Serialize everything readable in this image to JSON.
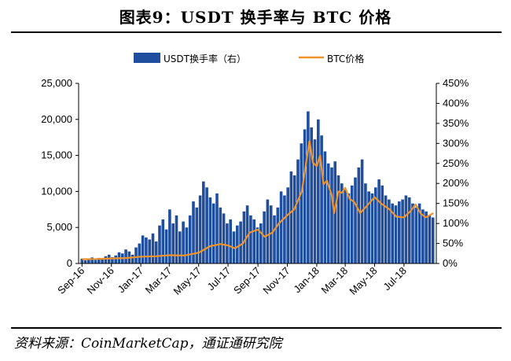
{
  "title": "图表9：USDT 换手率与 BTC 价格",
  "source": "资料来源：CoinMarketCap，通证通研究院",
  "colors": {
    "bar": "#1f4e9e",
    "line": "#f0932b"
  },
  "chart_data": {
    "type": "bar+line",
    "x_labels": [
      "Sep-16",
      "Nov-16",
      "Jan-17",
      "Mar-17",
      "May-17",
      "Jul-17",
      "Sep-17",
      "Nov-17",
      "Jan-18",
      "Mar-18",
      "May-18",
      "Jul-18"
    ],
    "y_left": {
      "ticks": [
        "0",
        "5,000",
        "10,000",
        "15,000",
        "20,000",
        "25,000"
      ],
      "lim": [
        0,
        25000
      ]
    },
    "y_right": {
      "ticks": [
        "0%",
        "50%",
        "100%",
        "150%",
        "200%",
        "250%",
        "300%",
        "350%",
        "400%",
        "450%"
      ],
      "lim": [
        0,
        450
      ]
    },
    "legend": [
      "USDT换手率（右）",
      "BTC价格"
    ],
    "series": [
      {
        "name": "USDT换手率（右）",
        "kind": "bar",
        "axis": "right",
        "note": "approximate weekly values in %",
        "x": [
          "2016-09-01",
          "2016-09-08",
          "2016-09-15",
          "2016-09-22",
          "2016-09-29",
          "2016-10-06",
          "2016-10-13",
          "2016-10-20",
          "2016-10-27",
          "2016-11-03",
          "2016-11-10",
          "2016-11-17",
          "2016-11-24",
          "2016-12-01",
          "2016-12-08",
          "2016-12-15",
          "2016-12-22",
          "2016-12-29",
          "2017-01-05",
          "2017-01-12",
          "2017-01-19",
          "2017-01-26",
          "2017-02-02",
          "2017-02-09",
          "2017-02-16",
          "2017-02-23",
          "2017-03-02",
          "2017-03-09",
          "2017-03-16",
          "2017-03-23",
          "2017-03-30",
          "2017-04-06",
          "2017-04-13",
          "2017-04-20",
          "2017-04-27",
          "2017-05-04",
          "2017-05-11",
          "2017-05-18",
          "2017-05-25",
          "2017-06-01",
          "2017-06-08",
          "2017-06-15",
          "2017-06-22",
          "2017-06-29",
          "2017-07-06",
          "2017-07-13",
          "2017-07-20",
          "2017-07-27",
          "2017-08-03",
          "2017-08-10",
          "2017-08-17",
          "2017-08-24",
          "2017-08-31",
          "2017-09-07",
          "2017-09-14",
          "2017-09-21",
          "2017-09-28",
          "2017-10-05",
          "2017-10-12",
          "2017-10-19",
          "2017-10-26",
          "2017-11-02",
          "2017-11-09",
          "2017-11-16",
          "2017-11-23",
          "2017-11-30",
          "2017-12-07",
          "2017-12-14",
          "2017-12-21",
          "2017-12-28",
          "2018-01-04",
          "2018-01-11",
          "2018-01-18",
          "2018-01-25",
          "2018-02-01",
          "2018-02-08",
          "2018-02-15",
          "2018-02-22",
          "2018-03-01",
          "2018-03-08",
          "2018-03-15",
          "2018-03-22",
          "2018-03-29",
          "2018-04-05",
          "2018-04-12",
          "2018-04-19",
          "2018-04-26",
          "2018-05-03",
          "2018-05-10",
          "2018-05-17",
          "2018-05-24",
          "2018-05-31",
          "2018-06-07",
          "2018-06-14",
          "2018-06-21",
          "2018-06-28",
          "2018-07-05",
          "2018-07-12",
          "2018-07-19",
          "2018-07-26",
          "2018-08-02",
          "2018-08-09",
          "2018-08-16",
          "2018-08-23",
          "2018-08-30"
        ],
        "values": [
          12,
          8,
          10,
          15,
          9,
          14,
          12,
          18,
          22,
          16,
          20,
          28,
          25,
          35,
          30,
          22,
          40,
          50,
          70,
          65,
          60,
          75,
          55,
          95,
          110,
          85,
          135,
          100,
          120,
          80,
          105,
          90,
          120,
          155,
          140,
          170,
          205,
          190,
          165,
          150,
          175,
          140,
          125,
          100,
          110,
          80,
          95,
          105,
          130,
          145,
          120,
          110,
          90,
          100,
          130,
          160,
          145,
          120,
          140,
          180,
          170,
          190,
          230,
          220,
          260,
          300,
          335,
          380,
          340,
          310,
          360,
          320,
          280,
          250,
          240,
          255,
          220,
          200,
          185,
          175,
          195,
          215,
          240,
          260,
          200,
          180,
          175,
          190,
          210,
          195,
          170,
          160,
          150,
          145,
          155,
          160,
          170,
          165,
          150,
          140,
          150,
          135,
          130,
          120,
          115
        ]
      },
      {
        "name": "BTC价格",
        "kind": "line",
        "axis": "left",
        "note": "approximate weekly values in USD",
        "x": [
          "2016-09-01",
          "2016-10-01",
          "2016-11-01",
          "2016-12-01",
          "2017-01-01",
          "2017-02-01",
          "2017-03-01",
          "2017-04-01",
          "2017-05-01",
          "2017-05-25",
          "2017-06-15",
          "2017-07-01",
          "2017-07-15",
          "2017-08-01",
          "2017-08-15",
          "2017-09-01",
          "2017-09-15",
          "2017-10-01",
          "2017-10-15",
          "2017-11-01",
          "2017-11-15",
          "2017-12-01",
          "2017-12-10",
          "2017-12-17",
          "2017-12-24",
          "2018-01-01",
          "2018-01-08",
          "2018-01-15",
          "2018-01-22",
          "2018-02-01",
          "2018-02-06",
          "2018-02-15",
          "2018-02-22",
          "2018-03-01",
          "2018-03-10",
          "2018-03-20",
          "2018-04-01",
          "2018-04-15",
          "2018-05-01",
          "2018-05-15",
          "2018-06-01",
          "2018-06-15",
          "2018-07-01",
          "2018-07-15",
          "2018-07-25",
          "2018-08-05",
          "2018-08-15",
          "2018-08-31"
        ],
        "values": [
          600,
          620,
          700,
          750,
          950,
          1000,
          1150,
          1100,
          1500,
          2400,
          2700,
          2500,
          2100,
          2800,
          4300,
          4700,
          3700,
          4300,
          5600,
          6700,
          7500,
          10000,
          14000,
          17000,
          14000,
          13500,
          15000,
          11000,
          11500,
          9500,
          7000,
          10000,
          9800,
          10500,
          9000,
          8500,
          7000,
          8000,
          9200,
          8300,
          7500,
          6500,
          6400,
          7300,
          8200,
          6900,
          6400,
          7000
        ]
      }
    ]
  }
}
